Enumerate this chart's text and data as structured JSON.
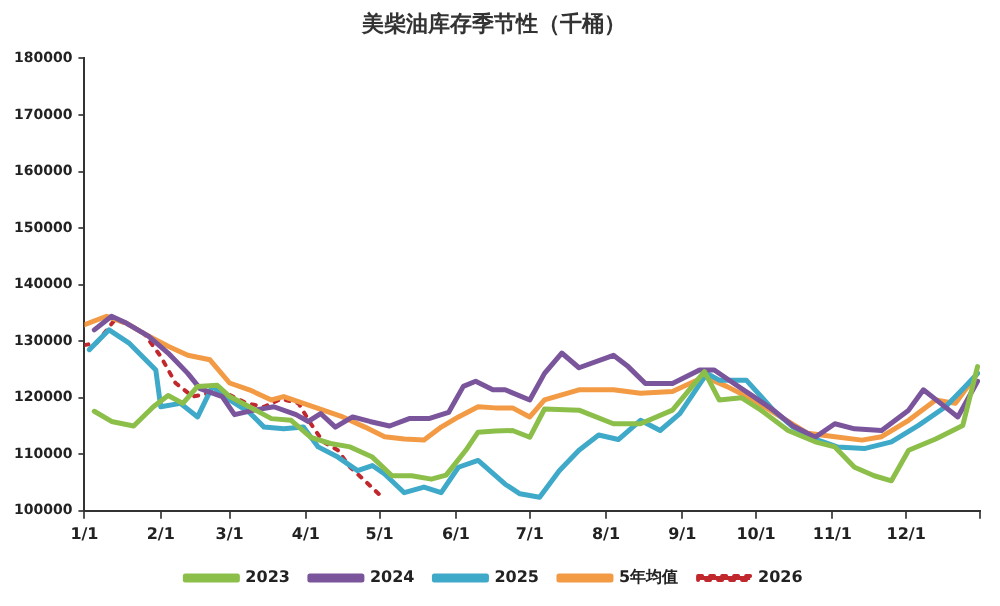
{
  "chart_data": {
    "type": "line",
    "title": "美柴油库存季节性（千桶）",
    "xlim": [
      "--01-01",
      "--12-31"
    ],
    "xticks": [
      {
        "value": "--01-01",
        "label": "1/1"
      },
      {
        "value": "--02-01",
        "label": "2/1"
      },
      {
        "value": "--03-01",
        "label": "3/1"
      },
      {
        "value": "--04-01",
        "label": "4/1"
      },
      {
        "value": "--05-01",
        "label": "5/1"
      },
      {
        "value": "--06-01",
        "label": "6/1"
      },
      {
        "value": "--07-01",
        "label": "7/1"
      },
      {
        "value": "--08-01",
        "label": "8/1"
      },
      {
        "value": "--09-01",
        "label": "9/1"
      },
      {
        "value": "--10-01",
        "label": "10/1"
      },
      {
        "value": "--11-01",
        "label": "11/1"
      },
      {
        "value": "--12-01",
        "label": "12/1"
      },
      {
        "value": "--12-31",
        "label": null
      }
    ],
    "ylim": [
      100000,
      180000
    ],
    "yticks": [
      100000,
      110000,
      120000,
      130000,
      140000,
      150000,
      160000,
      170000,
      180000
    ],
    "legend": "bottom",
    "marker": "none",
    "series": [
      {
        "name": "2023",
        "color": "#8cbf4a",
        "x": [
          "--01-05",
          "--01-12",
          "--01-21",
          "--01-29",
          "--02-04",
          "--02-10",
          "--02-16",
          "--02-24",
          "--03-01",
          "--03-09",
          "--03-18",
          "--03-26",
          "--04-03",
          "--04-11",
          "--04-19",
          "--04-28",
          "--05-06",
          "--05-14",
          "--05-22",
          "--05-28",
          "--06-05",
          "--06-10",
          "--06-17",
          "--06-24",
          "--07-01",
          "--07-07",
          "--07-21",
          "--08-04",
          "--08-15",
          "--08-28",
          "--09-10",
          "--09-16",
          "--09-25",
          "--10-03",
          "--10-14",
          "--10-25",
          "--11-02",
          "--11-10",
          "--11-18",
          "--11-25",
          "--12-02",
          "--12-13",
          "--12-24",
          "--12-30"
        ],
        "values": [
          117600,
          115800,
          115000,
          118400,
          120400,
          119000,
          122000,
          122200,
          120200,
          118400,
          116300,
          116000,
          113000,
          111900,
          111300,
          109500,
          106200,
          106200,
          105600,
          106300,
          110700,
          113900,
          114100,
          114200,
          113000,
          118000,
          117800,
          115400,
          115400,
          117800,
          124600,
          119600,
          120000,
          117800,
          114200,
          112200,
          111300,
          107700,
          106200,
          105300,
          110700,
          112700,
          115100,
          125500
        ]
      },
      {
        "name": "2024",
        "color": "#7b559c",
        "x": [
          "--01-05",
          "--01-12",
          "--01-18",
          "--01-27",
          "--02-04",
          "--02-12",
          "--02-17",
          "--02-26",
          "--03-03",
          "--03-11",
          "--03-19",
          "--03-28",
          "--04-02",
          "--04-07",
          "--04-13",
          "--04-20",
          "--04-27",
          "--05-05",
          "--05-13",
          "--05-21",
          "--05-29",
          "--06-04",
          "--06-09",
          "--06-16",
          "--06-21",
          "--07-01",
          "--07-07",
          "--07-14",
          "--07-21",
          "--08-04",
          "--08-10",
          "--08-17",
          "--08-28",
          "--09-08",
          "--09-14",
          "--09-22",
          "--09-30",
          "--10-08",
          "--10-16",
          "--10-25",
          "--11-02",
          "--11-10",
          "--11-21",
          "--12-02",
          "--12-08",
          "--12-15",
          "--12-22",
          "--12-30"
        ],
        "values": [
          132000,
          134400,
          133200,
          130900,
          127900,
          124300,
          121600,
          120200,
          117000,
          117800,
          118400,
          117000,
          115800,
          117200,
          114800,
          116600,
          115800,
          115000,
          116300,
          116300,
          117400,
          122000,
          122900,
          121400,
          121400,
          119600,
          124300,
          127900,
          125300,
          127500,
          125500,
          122500,
          122500,
          124900,
          124900,
          122500,
          120200,
          117800,
          115000,
          113000,
          115400,
          114500,
          114200,
          117800,
          121400,
          119000,
          116600,
          122900
        ]
      },
      {
        "name": "2025",
        "color": "#3ea9c8",
        "x": [
          "--01-03",
          "--01-11",
          "--01-19",
          "--01-30",
          "--02-01",
          "--02-09",
          "--02-16",
          "--02-22",
          "--03-01",
          "--03-09",
          "--03-15",
          "--03-23",
          "--03-31",
          "--04-06",
          "--04-14",
          "--04-22",
          "--04-28",
          "--05-03",
          "--05-11",
          "--05-19",
          "--05-26",
          "--06-02",
          "--06-10",
          "--06-21",
          "--06-27",
          "--07-05",
          "--07-13",
          "--07-21",
          "--07-29",
          "--08-06",
          "--08-15",
          "--08-23",
          "--08-31",
          "--09-11",
          "--09-16",
          "--09-27",
          "--10-08",
          "--10-16",
          "--10-25",
          "--11-03",
          "--11-14",
          "--11-25",
          "--12-06",
          "--12-17",
          "--12-25",
          "--12-30"
        ],
        "values": [
          128500,
          132000,
          129700,
          124900,
          118400,
          119000,
          116600,
          122000,
          119600,
          117400,
          114800,
          114500,
          114800,
          111300,
          109500,
          107100,
          108000,
          106500,
          103200,
          104200,
          103200,
          107700,
          108900,
          104700,
          103000,
          102400,
          107100,
          110700,
          113400,
          112600,
          116000,
          114200,
          117200,
          124300,
          123100,
          123100,
          117800,
          114800,
          112700,
          111300,
          111000,
          112200,
          115100,
          118400,
          122000,
          124300
        ]
      },
      {
        "name": "5年均值",
        "color": "#f39a45",
        "x": [
          "--01-01",
          "--01-10",
          "--01-18",
          "--01-27",
          "--02-04",
          "--02-12",
          "--02-21",
          "--03-01",
          "--03-09",
          "--03-18",
          "--03-23",
          "--03-31",
          "--04-08",
          "--04-16",
          "--04-25",
          "--05-03",
          "--05-11",
          "--05-19",
          "--05-26",
          "--06-02",
          "--06-10",
          "--06-17",
          "--06-24",
          "--07-01",
          "--07-07",
          "--07-21",
          "--08-04",
          "--08-15",
          "--08-28",
          "--09-10",
          "--09-19",
          "--09-30",
          "--10-11",
          "--10-22",
          "--11-02",
          "--11-13",
          "--11-21",
          "--12-02",
          "--12-13",
          "--12-21",
          "--12-30"
        ],
        "values": [
          132900,
          134400,
          133200,
          130900,
          129100,
          127500,
          126700,
          122600,
          121400,
          119600,
          120200,
          119000,
          117800,
          116600,
          114800,
          113100,
          112700,
          112500,
          114800,
          116600,
          118400,
          118200,
          118200,
          116600,
          119600,
          121400,
          121400,
          120800,
          121100,
          123700,
          122000,
          119600,
          116600,
          113700,
          113100,
          112500,
          113100,
          116000,
          119600,
          119000,
          124300
        ]
      },
      {
        "name": "2026",
        "color": "#c0282d",
        "line_style": "dotted",
        "x": [
          "--01-01",
          "--01-06",
          "--01-13",
          "--01-18",
          "--01-25",
          "--02-01",
          "--02-07",
          "--02-14",
          "--02-21",
          "--03-01",
          "--03-08",
          "--03-15",
          "--03-22",
          "--03-29",
          "--04-03",
          "--04-08",
          "--04-14",
          "--04-19",
          "--04-25",
          "--05-02"
        ],
        "values": [
          129300,
          129700,
          133600,
          133200,
          131500,
          127300,
          122600,
          120200,
          120800,
          120500,
          119000,
          118400,
          119800,
          119000,
          115400,
          112200,
          110700,
          107700,
          105300,
          102400
        ]
      }
    ]
  }
}
